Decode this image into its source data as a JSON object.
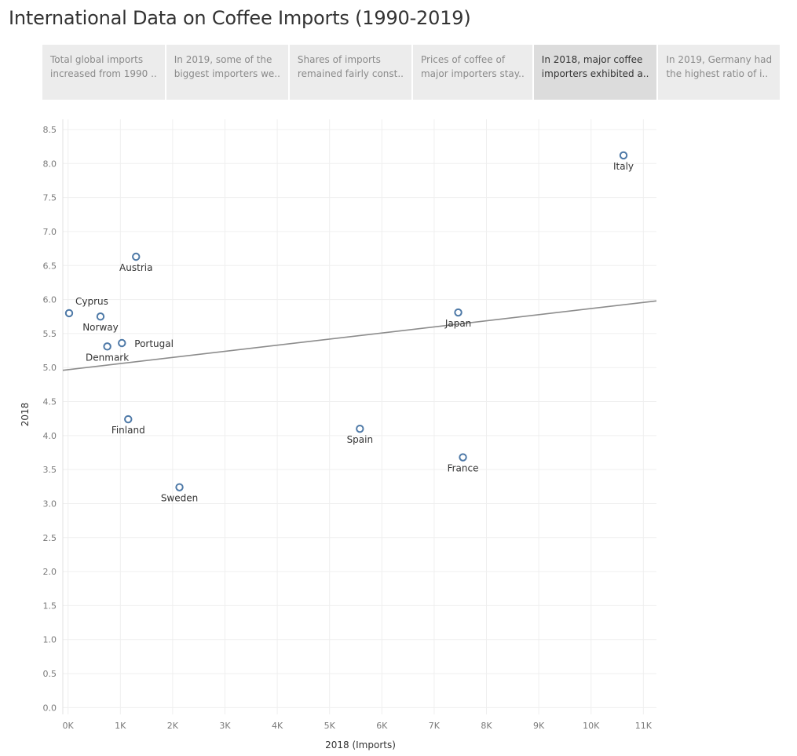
{
  "page": {
    "title": "International Data on Coffee Imports (1990-2019)"
  },
  "story_points": [
    {
      "line1": "Total global imports",
      "line2": "increased from 1990 ..",
      "active": false
    },
    {
      "line1": "In 2019, some of the",
      "line2": "biggest importers we..",
      "active": false
    },
    {
      "line1": "Shares of imports",
      "line2": "remained fairly const..",
      "active": false
    },
    {
      "line1": "Prices of coffee of",
      "line2": "major importers stay..",
      "active": false
    },
    {
      "line1": "In 2018, major coffee",
      "line2": "importers exhibited a..",
      "active": true
    },
    {
      "line1": "In 2019, Germany  had",
      "line2": "the highest ratio of i..",
      "active": false
    }
  ],
  "colors": {
    "marker": "#4e79a7",
    "trend": "#8c8c8c",
    "grid": "#efefef",
    "active_tab": "#dcdcdc",
    "tab": "#ececec"
  },
  "chart_data": {
    "type": "scatter",
    "title": "",
    "xlabel": "2018 (Imports)",
    "ylabel": "2018",
    "xlim": [
      -100,
      11250
    ],
    "ylim": [
      -0.1,
      8.65
    ],
    "x_ticks": [
      0,
      1000,
      2000,
      3000,
      4000,
      5000,
      6000,
      7000,
      8000,
      9000,
      10000,
      11000
    ],
    "x_tick_labels": [
      "0K",
      "1K",
      "2K",
      "3K",
      "4K",
      "5K",
      "6K",
      "7K",
      "8K",
      "9K",
      "10K",
      "11K"
    ],
    "y_ticks": [
      0,
      0.5,
      1,
      1.5,
      2,
      2.5,
      3,
      3.5,
      4,
      4.5,
      5,
      5.5,
      6,
      6.5,
      7,
      7.5,
      8,
      8.5
    ],
    "y_tick_labels": [
      "0.0",
      "0.5",
      "1.0",
      "1.5",
      "2.0",
      "2.5",
      "3.0",
      "3.5",
      "4.0",
      "4.5",
      "5.0",
      "5.5",
      "6.0",
      "6.5",
      "7.0",
      "7.5",
      "8.0",
      "8.5"
    ],
    "grid": true,
    "trend_line": {
      "x": [
        -100,
        11250
      ],
      "y": [
        4.96,
        5.98
      ]
    },
    "points": [
      {
        "label": "Cyprus",
        "x": 20,
        "y": 5.8,
        "label_pos": "above-right"
      },
      {
        "label": "Norway",
        "x": 620,
        "y": 5.75,
        "label_pos": "below"
      },
      {
        "label": "Portugal",
        "x": 1030,
        "y": 5.36,
        "label_pos": "right"
      },
      {
        "label": "Denmark",
        "x": 750,
        "y": 5.31,
        "label_pos": "below"
      },
      {
        "label": "Austria",
        "x": 1300,
        "y": 6.63,
        "label_pos": "below"
      },
      {
        "label": "Finland",
        "x": 1150,
        "y": 4.24,
        "label_pos": "below"
      },
      {
        "label": "Sweden",
        "x": 2130,
        "y": 3.24,
        "label_pos": "below"
      },
      {
        "label": "Spain",
        "x": 5580,
        "y": 4.1,
        "label_pos": "below"
      },
      {
        "label": "France",
        "x": 7550,
        "y": 3.68,
        "label_pos": "below"
      },
      {
        "label": "Japan",
        "x": 7460,
        "y": 5.81,
        "label_pos": "below"
      },
      {
        "label": "Italy",
        "x": 10620,
        "y": 8.12,
        "label_pos": "below"
      }
    ]
  }
}
